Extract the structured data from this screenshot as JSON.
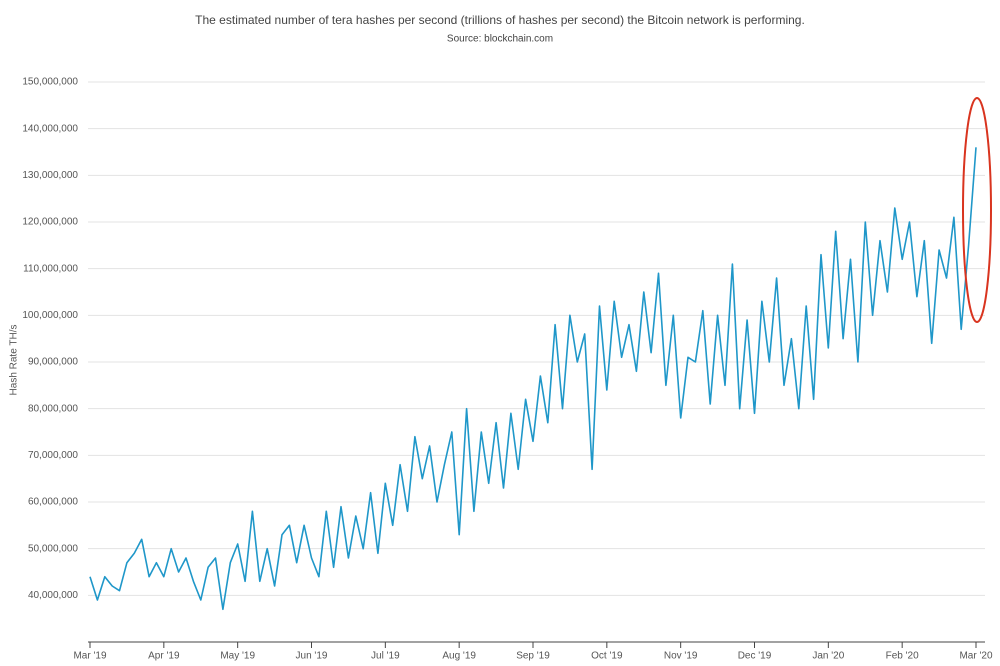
{
  "chart_data": {
    "type": "line",
    "title": "The estimated number of tera hashes per second (trillions of hashes per second) the Bitcoin network is performing.",
    "subtitle": "Source: blockchain.com",
    "y_label": "Hash Rate TH/s",
    "categories": [
      "Mar '19",
      null,
      null,
      null,
      null,
      null,
      null,
      null,
      null,
      null,
      "Apr '19",
      null,
      null,
      null,
      null,
      null,
      null,
      null,
      null,
      null,
      "May '19",
      null,
      null,
      null,
      null,
      null,
      null,
      null,
      null,
      null,
      "Jun '19",
      null,
      null,
      null,
      null,
      null,
      null,
      null,
      null,
      null,
      "Jul '19",
      null,
      null,
      null,
      null,
      null,
      null,
      null,
      null,
      null,
      "Aug '19",
      null,
      null,
      null,
      null,
      null,
      null,
      null,
      null,
      null,
      "Sep '19",
      null,
      null,
      null,
      null,
      null,
      null,
      null,
      null,
      null,
      "Oct '19",
      null,
      null,
      null,
      null,
      null,
      null,
      null,
      null,
      null,
      "Nov '19",
      null,
      null,
      null,
      null,
      null,
      null,
      null,
      null,
      null,
      "Dec '19",
      null,
      null,
      null,
      null,
      null,
      null,
      null,
      null,
      null,
      "Jan '20",
      null,
      null,
      null,
      null,
      null,
      null,
      null,
      null,
      null,
      "Feb '20",
      null,
      null,
      null,
      null,
      null,
      null,
      null,
      null,
      null,
      "Mar '20"
    ],
    "series": [
      {
        "name": "Hash Rate",
        "color": "#1f97c9",
        "values": [
          44000000,
          39000000,
          44000000,
          42000000,
          41000000,
          47000000,
          49000000,
          52000000,
          44000000,
          47000000,
          44000000,
          50000000,
          45000000,
          48000000,
          43000000,
          39000000,
          46000000,
          48000000,
          37000000,
          47000000,
          51000000,
          43000000,
          58000000,
          43000000,
          50000000,
          42000000,
          53000000,
          55000000,
          47000000,
          55000000,
          48000000,
          44000000,
          58000000,
          46000000,
          59000000,
          48000000,
          57000000,
          50000000,
          62000000,
          49000000,
          64000000,
          55000000,
          68000000,
          58000000,
          74000000,
          65000000,
          72000000,
          60000000,
          68000000,
          75000000,
          53000000,
          80000000,
          58000000,
          75000000,
          64000000,
          77000000,
          63000000,
          79000000,
          67000000,
          82000000,
          73000000,
          87000000,
          77000000,
          98000000,
          80000000,
          100000000,
          90000000,
          96000000,
          67000000,
          102000000,
          84000000,
          103000000,
          91000000,
          98000000,
          88000000,
          105000000,
          92000000,
          109000000,
          85000000,
          100000000,
          78000000,
          91000000,
          90000000,
          101000000,
          81000000,
          100000000,
          85000000,
          111000000,
          80000000,
          99000000,
          79000000,
          103000000,
          90000000,
          108000000,
          85000000,
          95000000,
          80000000,
          102000000,
          82000000,
          113000000,
          93000000,
          118000000,
          95000000,
          112000000,
          90000000,
          120000000,
          100000000,
          116000000,
          105000000,
          123000000,
          112000000,
          120000000,
          104000000,
          116000000,
          94000000,
          114000000,
          108000000,
          121000000,
          97000000,
          115000000,
          136000000
        ]
      }
    ],
    "ylim": [
      30000000,
      150000000
    ],
    "yticks": [
      {
        "value": 40000000,
        "label": "40,000,000"
      },
      {
        "value": 50000000,
        "label": "50,000,000"
      },
      {
        "value": 60000000,
        "label": "60,000,000"
      },
      {
        "value": 70000000,
        "label": "70,000,000"
      },
      {
        "value": 80000000,
        "label": "80,000,000"
      },
      {
        "value": 90000000,
        "label": "90,000,000"
      },
      {
        "value": 100000000,
        "label": "100,000,000"
      },
      {
        "value": 110000000,
        "label": "110,000,000"
      },
      {
        "value": 120000000,
        "label": "120,000,000"
      },
      {
        "value": 130000000,
        "label": "130,000,000"
      },
      {
        "value": 140000000,
        "label": "140,000,000"
      },
      {
        "value": 150000000,
        "label": "150,000,000"
      }
    ],
    "grid": true
  }
}
